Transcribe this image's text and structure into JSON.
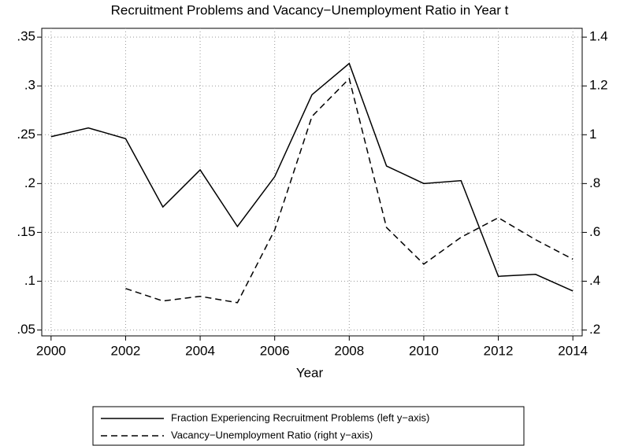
{
  "chart_data": {
    "type": "line",
    "title": "Recruitment Problems and Vacancy−Unemployment Ratio in Year t",
    "xlabel": "Year",
    "x": [
      2000,
      2001,
      2002,
      2003,
      2004,
      2005,
      2006,
      2007,
      2008,
      2009,
      2010,
      2011,
      2012,
      2013,
      2014
    ],
    "series": [
      {
        "name": "Fraction Experiencing Recruitment Problems (left y−axis)",
        "color": "#000000",
        "line_style": "solid",
        "axis": "y",
        "values": [
          0.248,
          0.257,
          0.246,
          0.176,
          0.214,
          0.156,
          0.207,
          0.291,
          0.323,
          0.218,
          0.2,
          0.203,
          0.105,
          0.107,
          0.09
        ]
      },
      {
        "name": "Vacancy−Unemployment Ratio (right y−axis)",
        "color": "#000000",
        "line_style": "dashed",
        "axis": "y2",
        "values": [
          null,
          null,
          0.37,
          0.319,
          0.338,
          0.312,
          0.61,
          1.075,
          1.23,
          0.62,
          0.47,
          0.58,
          0.66,
          0.57,
          0.49
        ]
      }
    ],
    "xlim": [
      1999.75,
      2014.25
    ],
    "xticks": [
      2000,
      2002,
      2004,
      2006,
      2008,
      2010,
      2012,
      2014
    ],
    "ylim": [
      0.044,
      0.359
    ],
    "yticks": [
      {
        "value": 0.05,
        "label": ".05"
      },
      {
        "value": 0.1,
        "label": ".1"
      },
      {
        "value": 0.15,
        "label": ".15"
      },
      {
        "value": 0.2,
        "label": ".2"
      },
      {
        "value": 0.25,
        "label": ".25"
      },
      {
        "value": 0.3,
        "label": ".3"
      },
      {
        "value": 0.35,
        "label": ".35"
      }
    ],
    "y2lim": [
      0.176,
      1.436
    ],
    "y2ticks": [
      {
        "value": 0.2,
        "label": ".2"
      },
      {
        "value": 0.4,
        "label": ".4"
      },
      {
        "value": 0.6,
        "label": ".6"
      },
      {
        "value": 0.8,
        "label": ".8"
      },
      1,
      1.2,
      1.4
    ],
    "grid": true,
    "legend": "bottom"
  }
}
